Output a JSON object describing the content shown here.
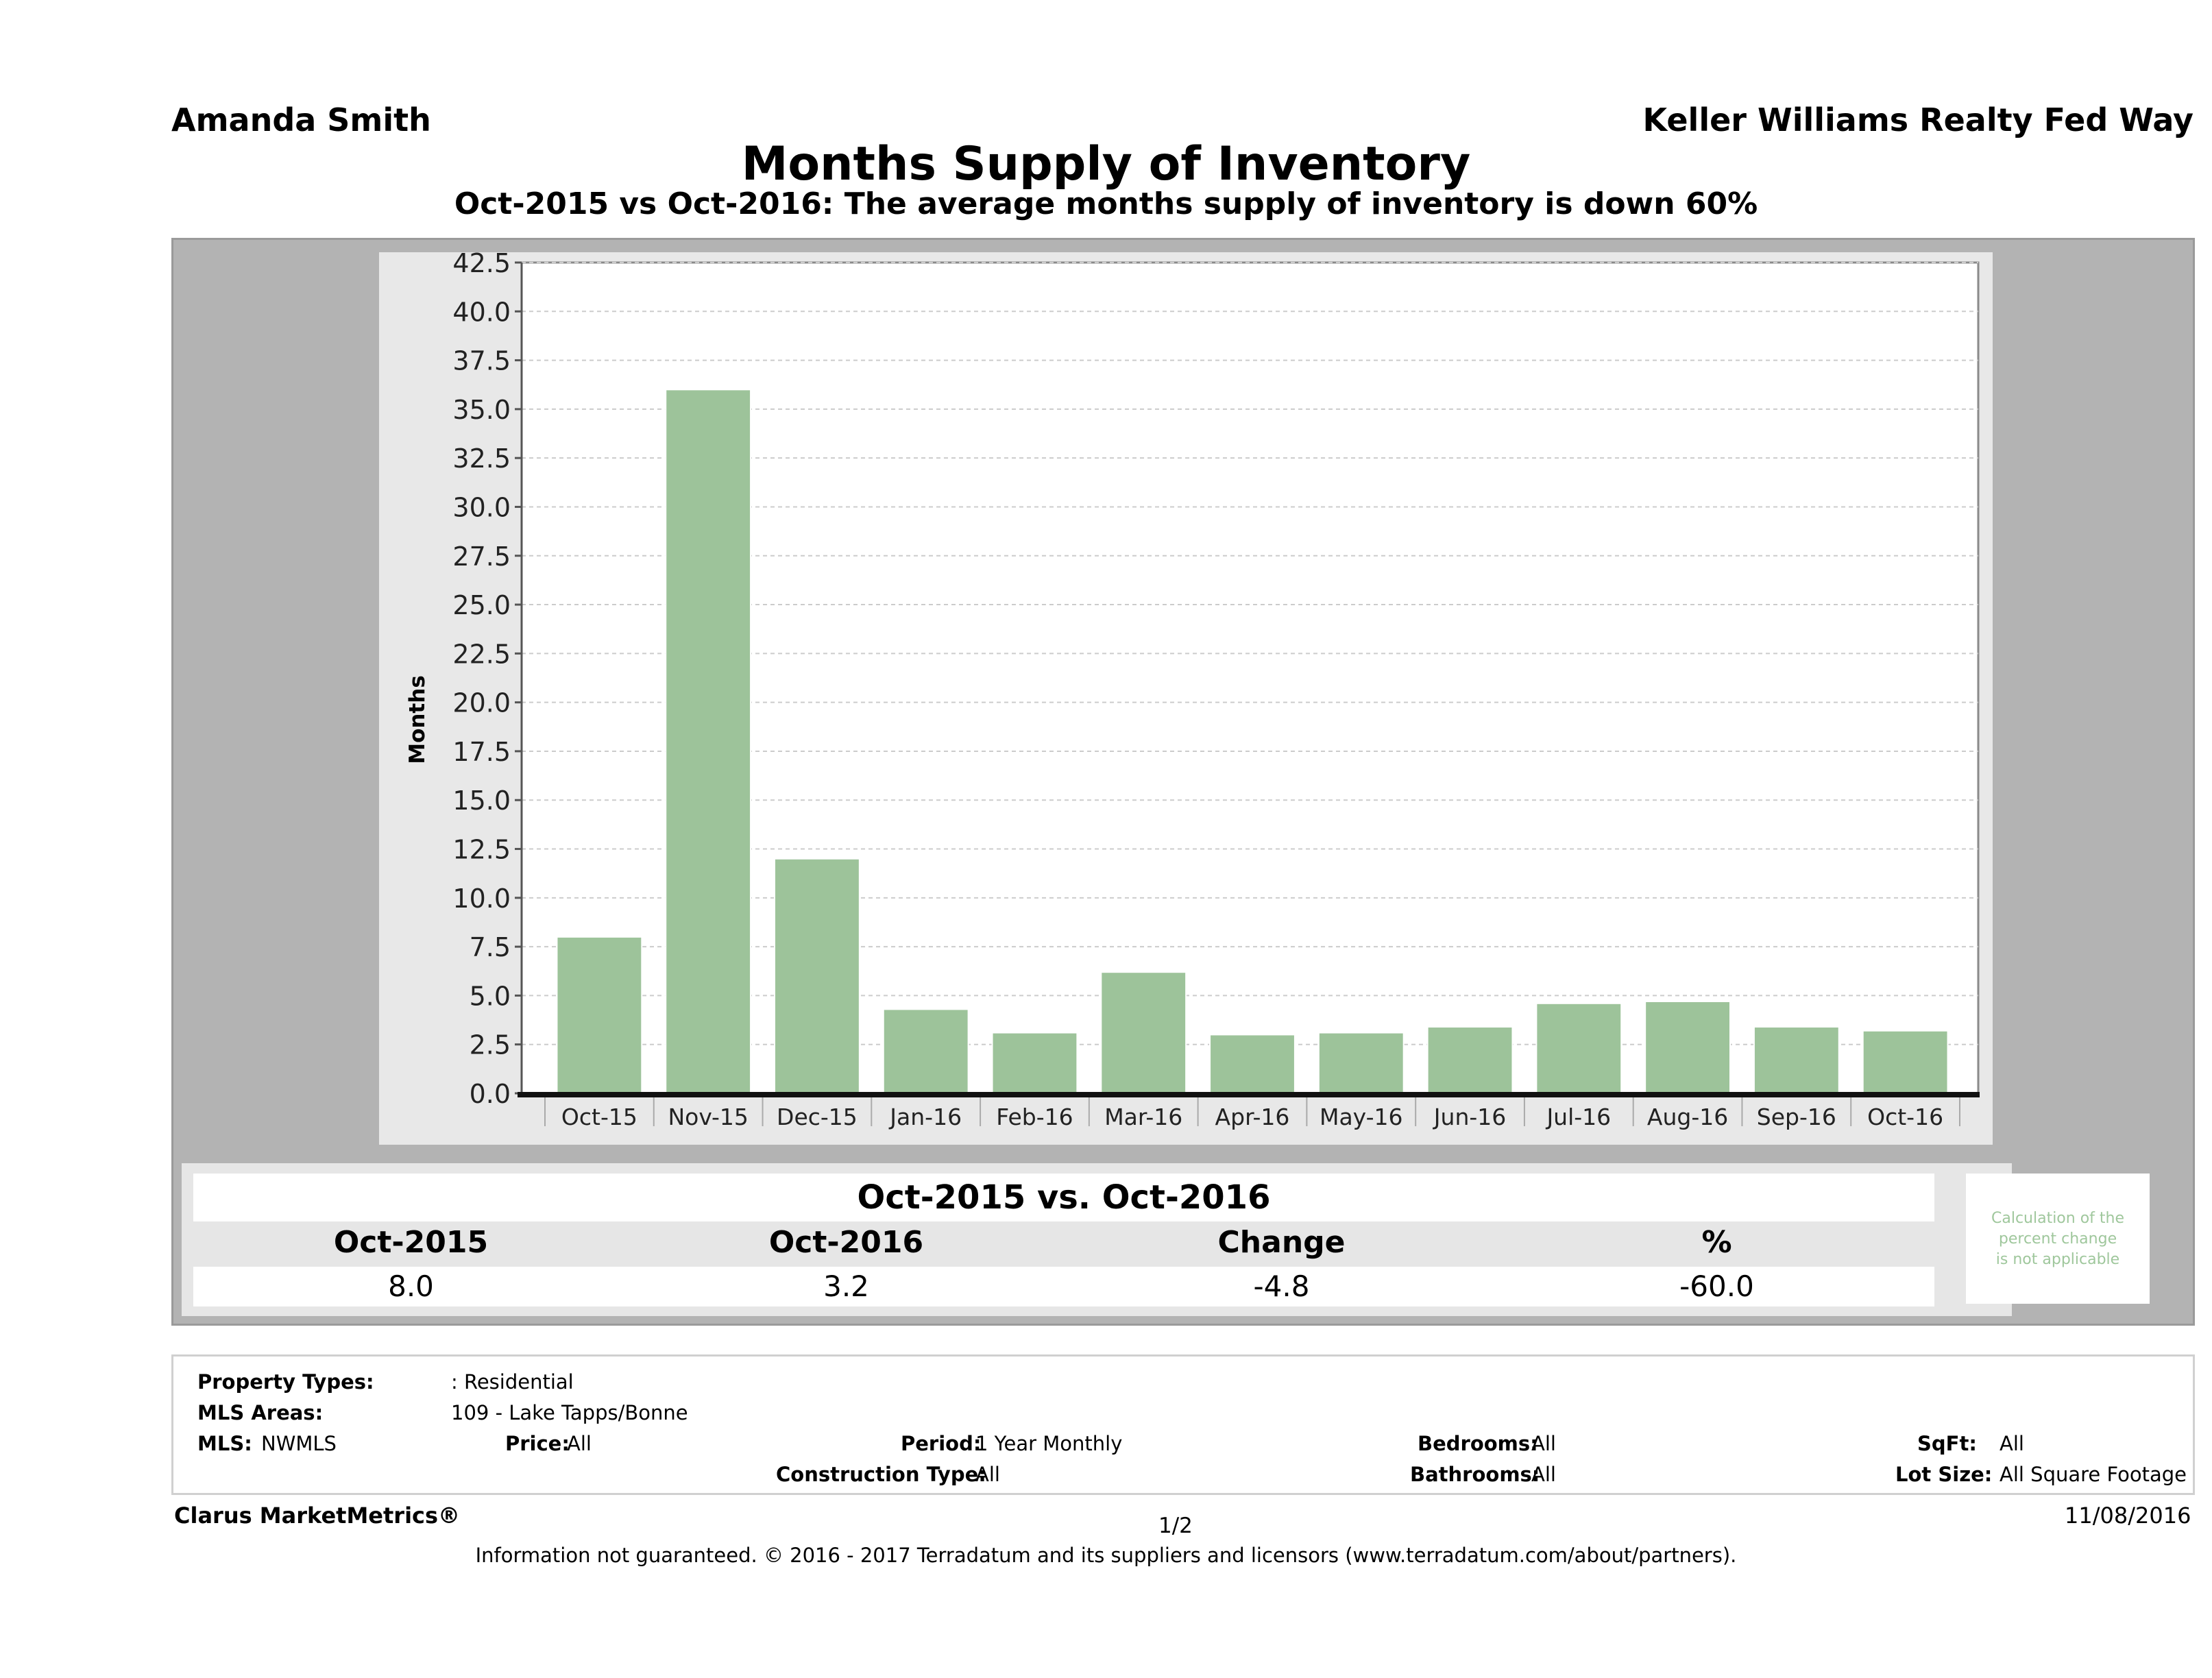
{
  "header": {
    "agent": "Amanda Smith",
    "company": "Keller Williams Realty Fed Way",
    "title": "Months Supply of Inventory",
    "subtitle": "Oct-2015 vs Oct-2016: The average months supply of inventory is down 60%"
  },
  "chart_data": {
    "type": "bar",
    "title": "Months Supply of Inventory",
    "xlabel": "",
    "ylabel": "Months",
    "categories": [
      "Oct-15",
      "Nov-15",
      "Dec-15",
      "Jan-16",
      "Feb-16",
      "Mar-16",
      "Apr-16",
      "May-16",
      "Jun-16",
      "Jul-16",
      "Aug-16",
      "Sep-16",
      "Oct-16"
    ],
    "values": [
      8.0,
      36.0,
      12.0,
      4.3,
      3.1,
      6.2,
      3.0,
      3.1,
      3.4,
      4.6,
      4.7,
      3.4,
      3.2
    ],
    "ylim": [
      0,
      42.5
    ],
    "yticks": [
      "0.0",
      "2.5",
      "5.0",
      "7.5",
      "10.0",
      "12.5",
      "15.0",
      "17.5",
      "20.0",
      "22.5",
      "25.0",
      "27.5",
      "30.0",
      "32.5",
      "35.0",
      "37.5",
      "40.0",
      "42.5"
    ],
    "grid": true,
    "bar_color": "#9dc39a"
  },
  "stats": {
    "heading": "Oct-2015 vs. Oct-2016",
    "columns": [
      "Oct-2015",
      "Oct-2016",
      "Change",
      "%"
    ],
    "values": [
      "8.0",
      "3.2",
      "-4.8",
      "-60.0"
    ],
    "note_lines": [
      "Calculation of the",
      "percent change",
      "is not applicable"
    ]
  },
  "criteria": {
    "property_types_label": "Property Types:",
    "property_types_value": ": Residential",
    "mls_areas_label": "MLS Areas:",
    "mls_areas_value": "109 - Lake Tapps/Bonne",
    "mls_label": "MLS:",
    "mls_value": "NWMLS",
    "price_label": "Price:",
    "price_value": "All",
    "period_label": "Period:",
    "period_value": "1 Year Monthly",
    "construction_label": "Construction Type:",
    "construction_value": "All",
    "bedrooms_label": "Bedrooms:",
    "bedrooms_value": "All",
    "bathrooms_label": "Bathrooms:",
    "bathrooms_value": "All",
    "sqft_label": "SqFt:",
    "sqft_value": "All",
    "lotsize_label": "Lot Size:",
    "lotsize_value": "All Square Footage"
  },
  "footer": {
    "brand": "Clarus MarketMetrics®",
    "page": "1/2",
    "date": "11/08/2016",
    "disclaimer": "Information not guaranteed. © 2016 - 2017 Terradatum and its suppliers and licensors (www.terradatum.com/about/partners)."
  }
}
